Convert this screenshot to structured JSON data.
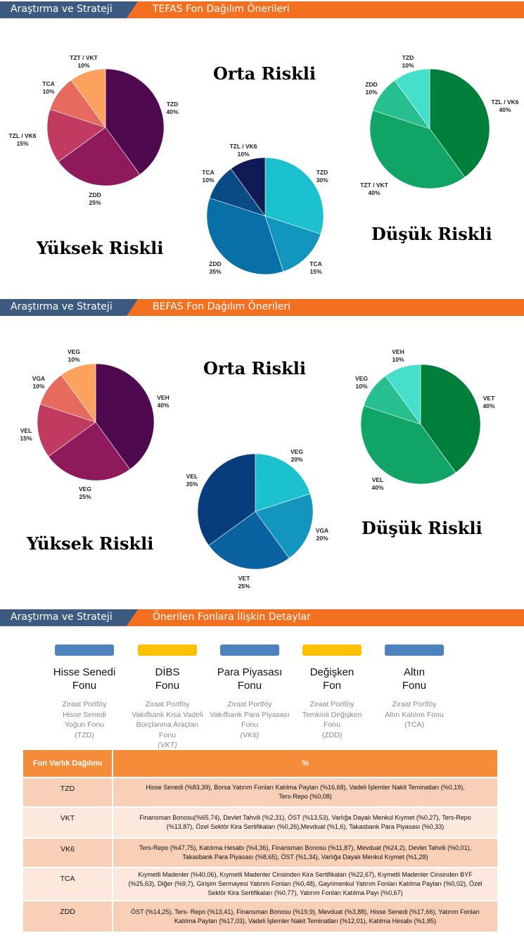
{
  "sections": [
    {
      "left": "Araştırma ve Strateji",
      "right": "TEFAS Fon Dağılım Önerileri"
    },
    {
      "left": "Araştırma ve Strateji",
      "right": "BEFAS Fon Dağılım Önerileri"
    },
    {
      "left": "Araştırma ve Strateji",
      "right": "Önerilen Fonlara İlişkin Detaylar"
    }
  ],
  "risk_labels": {
    "tefas_orta": "Orta Riskli",
    "tefas_yuksek": "Yüksek Riskli",
    "tefas_dusuk": "Düşük Riskli",
    "befas_orta": "Orta Riskli",
    "befas_yuksek": "Yüksek Riskli",
    "befas_dusuk": "Düşük Riskli"
  },
  "chart_data": [
    {
      "type": "pie",
      "slices": [
        {
          "label": "TZD",
          "value": 40,
          "color": "#4f0a4f"
        },
        {
          "label": "ZDD",
          "value": 25,
          "color": "#8e1a5c"
        },
        {
          "label": "TZL / VK6",
          "value": 15,
          "color": "#c13b60"
        },
        {
          "label": "TCA",
          "value": 10,
          "color": "#e76a5f"
        },
        {
          "label": "TZT / VKT",
          "value": 10,
          "color": "#fca15e"
        }
      ]
    },
    {
      "type": "pie",
      "slices": [
        {
          "label": "TZD",
          "value": 30,
          "color": "#1bc1cf"
        },
        {
          "label": "TCA",
          "value": 15,
          "color": "#1396bd"
        },
        {
          "label": "ZDD",
          "value": 35,
          "color": "#0870a6"
        },
        {
          "label": "TCA",
          "value": 10,
          "color": "#0a4a85"
        },
        {
          "label": "TZL / VK6",
          "value": 10,
          "color": "#101a55"
        }
      ]
    },
    {
      "type": "pie",
      "slices": [
        {
          "label": "TZL / VK6",
          "value": 40,
          "color": "#007f3b"
        },
        {
          "label": "TZT / VKT",
          "value": 40,
          "color": "#10a567"
        },
        {
          "label": "ZDD",
          "value": 10,
          "color": "#27bf90"
        },
        {
          "label": "TZD",
          "value": 10,
          "color": "#44e0cc"
        }
      ]
    },
    {
      "type": "pie",
      "slices": [
        {
          "label": "VEH",
          "value": 40,
          "color": "#4f0a4f"
        },
        {
          "label": "VEG",
          "value": 25,
          "color": "#8e1a5c"
        },
        {
          "label": "VEL",
          "value": 15,
          "color": "#c13b60"
        },
        {
          "label": "VGA",
          "value": 10,
          "color": "#e76a5f"
        },
        {
          "label": "VEG",
          "value": 10,
          "color": "#fca15e"
        }
      ]
    },
    {
      "type": "pie",
      "slices": [
        {
          "label": "VEG",
          "value": 20,
          "color": "#1bc1cf"
        },
        {
          "label": "VGA",
          "value": 20,
          "color": "#1396bd"
        },
        {
          "label": "VET",
          "value": 25,
          "color": "#0a62a0"
        },
        {
          "label": "VEL",
          "value": 35,
          "color": "#083d7d"
        }
      ]
    },
    {
      "type": "pie",
      "slices": [
        {
          "label": "VET",
          "value": 40,
          "color": "#007f3b"
        },
        {
          "label": "VEL",
          "value": 40,
          "color": "#10a567"
        },
        {
          "label": "VEG",
          "value": 10,
          "color": "#27bf90"
        },
        {
          "label": "VEH",
          "value": 10,
          "color": "#44e0cc"
        }
      ]
    }
  ],
  "categories": [
    {
      "name": "Hisse Senedi\nFonu",
      "sub": "Ziraat Portföy\nHisse Senedi\nYoğun Fonu\n(TZD)",
      "color": "#4f81bd"
    },
    {
      "name": "DİBS\nFonu",
      "sub": "Ziraat Portföy\nVakıfbank Kısa Vadeli\nBorçlanma Araçları\nFonu\n(VKT)",
      "color": "#ffc000"
    },
    {
      "name": "Para Piyasası\nFonu",
      "sub": "Ziraat Portföy\nVakıfbank Para Piyasası\nFonu\n(VK6)",
      "color": "#4f81bd"
    },
    {
      "name": "Değişken\nFon",
      "sub": "Ziraat Portföy\nTemkinli Değişken\nFonu\n(ZDD)",
      "color": "#ffc000"
    },
    {
      "name": "Altın\nFonu",
      "sub": "Ziraat Portföy\nAltın Katılım Fonu\n(TCA)",
      "color": "#4f81bd"
    }
  ],
  "table": {
    "header_left": "Fon Varlık Dağılımı",
    "header_right": "%",
    "rows": [
      {
        "code": "TZD",
        "text": "Hisse Senedi (%83,39), Borsa Yatırım Fonları Katılma Payları (%16,68), Vadeli İşlemler Nakit Teminatları (%0,19),\nTers-Repo (%0,08)"
      },
      {
        "code": "VKT",
        "text": "Finansman Bonosu(%65,74), Devlet Tahvili (%2,31), ÖST (%13,53), Varlığa Dayalı Menkul Kıymet (%0,27), Ters-Repo\n(%13,87),  Özel Sektör Kira Sertifikaları (%0,26),Mevduat (%1,6), Takasbank Para Piyasası (%0,33)"
      },
      {
        "code": "VK6",
        "text": "Ters-Repo (%47,75), Katılıma Hesabı (%4,36), Finansman Bonosu (%11,87), Mevduat (%24,2), Devlet Tahvili (%0,01),\nTakasbank Para Piyasası (%8,65), ÖST (%1,34), Varlığa Dayalı Menkul Kıymet (%1,28)"
      },
      {
        "code": "TCA",
        "text": "Kıymetli Madenler (%40,06), Kıymetli Madenler Cinsinden Kira Sertifikaları (%22,67), Kıymetli Madenler Cinsinden BYF\n(%25,63), Diğer (%9,7), Girişim Sermayesi Yatırım Fonları (%0,48), Gayrimenkul Yatırım Fonları Katılma Payları (%0,02), Özel\nSektör Kira Sertifikaları (%0,77), Yatırım Fonları Katılma Payı (%0,67)"
      },
      {
        "code": "ZDD",
        "text": "ÖST (%14,25), Ters- Repo (%13,41), Finansman Bonosu (%19,9), Mevduat (%3,88), Hisse Senedi (%17,66), Yatırım Fonları\nKatılma Payları (%17,03), Vadeli İşlemler Nakit Teminatları (%12,01), Katılma Hesabı (%1,85)"
      }
    ]
  }
}
